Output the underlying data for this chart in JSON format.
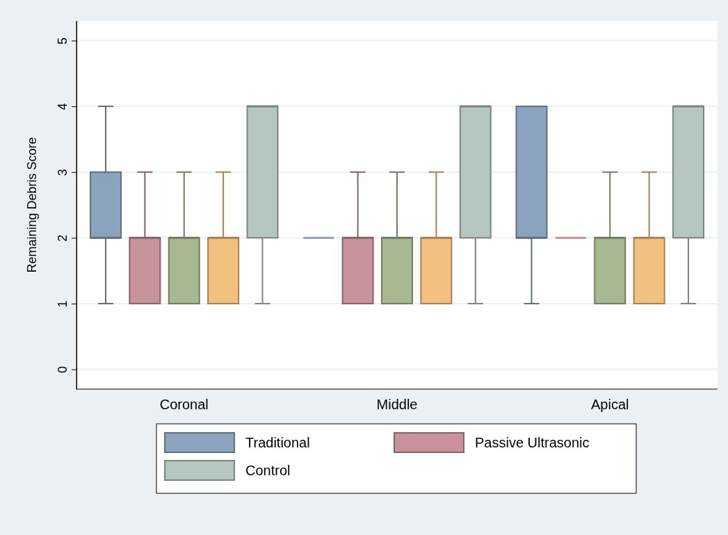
{
  "chart_data": {
    "type": "box",
    "ylabel": "Remaining Debris Score",
    "categories": [
      "Coronal",
      "Middle",
      "Apical"
    ],
    "ylim": [
      -0.3,
      5.3
    ],
    "yticks": [
      0,
      1,
      2,
      3,
      4,
      5
    ],
    "grid": "y",
    "legend": "bottom",
    "series": [
      {
        "name": "Traditional",
        "color": "#8ca3bd",
        "boxes": [
          {
            "low": 1,
            "q1": 2,
            "median": 2,
            "q3": 3,
            "high": 4
          },
          {
            "low": 2,
            "q1": 2,
            "median": 2,
            "q3": 2,
            "high": 2
          },
          {
            "low": 1,
            "q1": 2,
            "median": 2,
            "q3": 4,
            "high": 4
          }
        ]
      },
      {
        "name": "Passive Ultrasonic",
        "color": "#c8939a",
        "boxes": [
          {
            "low": 1,
            "q1": 1,
            "median": 2,
            "q3": 2,
            "high": 3
          },
          {
            "low": 1,
            "q1": 1,
            "median": 2,
            "q3": 2,
            "high": 3
          },
          {
            "low": 2,
            "q1": 2,
            "median": 2,
            "q3": 2,
            "high": 2
          }
        ]
      },
      {
        "color": "#a8b890",
        "boxes": [
          {
            "low": 1,
            "q1": 1,
            "median": 2,
            "q3": 2,
            "high": 3
          },
          {
            "low": 1,
            "q1": 1,
            "median": 2,
            "q3": 2,
            "high": 3
          },
          {
            "low": 1,
            "q1": 1,
            "median": 2,
            "q3": 2,
            "high": 3
          }
        ]
      },
      {
        "color": "#f2c07f",
        "boxes": [
          {
            "low": 1,
            "q1": 1,
            "median": 2,
            "q3": 2,
            "high": 3
          },
          {
            "low": 1,
            "q1": 1,
            "median": 2,
            "q3": 2,
            "high": 3
          },
          {
            "low": 1,
            "q1": 1,
            "median": 2,
            "q3": 2,
            "high": 3
          }
        ]
      },
      {
        "name": "Control",
        "color": "#b5c5bf",
        "boxes": [
          {
            "low": 1,
            "q1": 2,
            "median": 4,
            "q3": 4,
            "high": 4
          },
          {
            "low": 1,
            "q1": 2,
            "median": 4,
            "q3": 4,
            "high": 4
          },
          {
            "low": 1,
            "q1": 2,
            "median": 4,
            "q3": 4,
            "high": 4
          }
        ]
      }
    ]
  }
}
